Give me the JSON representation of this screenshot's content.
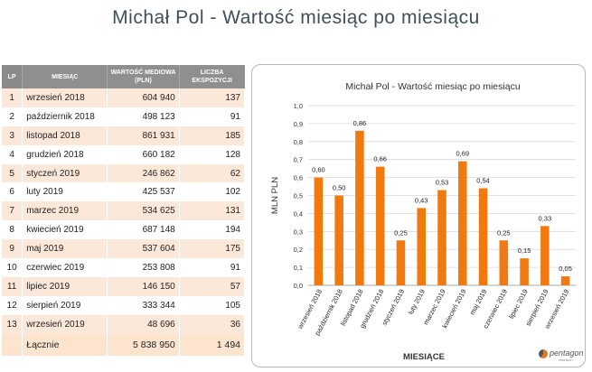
{
  "page_title": "Michał Pol - Wartość miesiąc po miesiącu",
  "table": {
    "headers": {
      "lp": "LP",
      "month": "MIESIĄC",
      "value": "WARTOŚĆ MEDIOWA (PLN)",
      "count": "LICZBA EKSPOZYCJI"
    },
    "rows": [
      {
        "lp": "1",
        "month": "wrzesień 2018",
        "value": "604 940",
        "count": "137"
      },
      {
        "lp": "2",
        "month": "październik 2018",
        "value": "498 123",
        "count": "91"
      },
      {
        "lp": "3",
        "month": "listopad 2018",
        "value": "861 931",
        "count": "185"
      },
      {
        "lp": "4",
        "month": "grudzień 2018",
        "value": "660 182",
        "count": "128"
      },
      {
        "lp": "5",
        "month": "styczeń 2019",
        "value": "246 862",
        "count": "62"
      },
      {
        "lp": "6",
        "month": "luty 2019",
        "value": "425 537",
        "count": "102"
      },
      {
        "lp": "7",
        "month": "marzec 2019",
        "value": "534 625",
        "count": "131"
      },
      {
        "lp": "8",
        "month": "kwiecień 2019",
        "value": "687 148",
        "count": "194"
      },
      {
        "lp": "9",
        "month": "maj 2019",
        "value": "537 604",
        "count": "175"
      },
      {
        "lp": "10",
        "month": "czerwiec 2019",
        "value": "253 808",
        "count": "91"
      },
      {
        "lp": "11",
        "month": "lipiec 2019",
        "value": "146 150",
        "count": "57"
      },
      {
        "lp": "12",
        "month": "sierpień 2019",
        "value": "333 344",
        "count": "105"
      },
      {
        "lp": "13",
        "month": "wrzesień 2019",
        "value": "48 696",
        "count": "36"
      }
    ],
    "total": {
      "label": "Łącznie",
      "value": "5 838 950",
      "count": "1 494"
    }
  },
  "chart_data": {
    "type": "bar",
    "title": "Michał Pol - Wartość miesiąc po miesiącu",
    "xlabel": "MIESIĄCE",
    "ylabel": "MLN PLN",
    "categories": [
      "wrzesień 2018",
      "październik 2018",
      "listopad 2018",
      "grudzień 2018",
      "styczeń 2019",
      "luty 2019",
      "marzec 2019",
      "kwiecień 2019",
      "maj 2019",
      "czerwiec 2019",
      "lipiec 2019",
      "sierpień 2019",
      "wrzesień 2019"
    ],
    "values": [
      0.6,
      0.5,
      0.86,
      0.66,
      0.25,
      0.43,
      0.53,
      0.69,
      0.54,
      0.25,
      0.15,
      0.33,
      0.05
    ],
    "value_labels": [
      "0,60",
      "0,50",
      "0,86",
      "0,66",
      "0,25",
      "0,43",
      "0,53",
      "0,69",
      "0,54",
      "0,25",
      "0,15",
      "0,33",
      "0,05"
    ],
    "ylim": [
      0,
      1.0
    ],
    "yticks": [
      0,
      0.1,
      0.2,
      0.3,
      0.4,
      0.5,
      0.6,
      0.7,
      0.8,
      0.9,
      1.0
    ],
    "ytick_labels": [
      "0,0",
      "0,1",
      "0,2",
      "0,3",
      "0,4",
      "0,5",
      "0,6",
      "0,7",
      "0,8",
      "0,9",
      "1,0"
    ],
    "grid": true,
    "legend": "none",
    "bar_color": "#f07a10"
  },
  "logo": {
    "name": "pentagon",
    "sub": "research"
  },
  "colors": {
    "header_bg": "#8f8f8f",
    "row_alt_bg": "#fce8d8",
    "bar": "#f07a10",
    "title": "#3f4f59"
  }
}
